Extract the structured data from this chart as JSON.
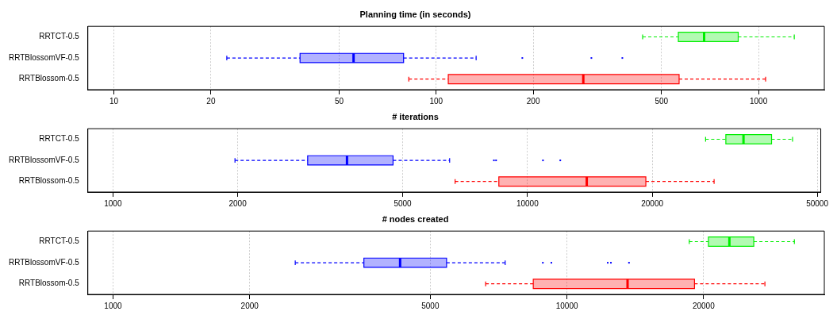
{
  "chart_data": [
    {
      "type": "box",
      "title": "Planning time (in seconds)",
      "categories": [
        "RRTCT-0.5",
        "RRTBlossomVF-0.5",
        "RRTBlossom-0.5"
      ],
      "orientation": "horizontal",
      "colors": [
        "#00ee00",
        "#0000ff",
        "#ff0000"
      ],
      "log": "x",
      "xlim": [
        8.3,
        1600
      ],
      "xticks": [
        10,
        20,
        50,
        100,
        200,
        500,
        1000
      ],
      "grid": "x",
      "legend": false,
      "boxes": [
        {
          "low": 437,
          "q1": 564,
          "median": 678,
          "q3": 865,
          "high": 1291
        },
        {
          "low": 22.4,
          "q1": 37.8,
          "median": 55.4,
          "q3": 79.2,
          "high": 133,
          "outliers": [
            185,
            303,
            378
          ]
        },
        {
          "low": 82.2,
          "q1": 109,
          "median": 286,
          "q3": 567,
          "high": 1052
        }
      ]
    },
    {
      "type": "box",
      "title": "# iterations",
      "categories": [
        "RRTCT-0.5",
        "RRTBlossomVF-0.5",
        "RRTBlossom-0.5"
      ],
      "orientation": "horizontal",
      "colors": [
        "#00ee00",
        "#0000ff",
        "#ff0000"
      ],
      "log": "x",
      "xlim": [
        870,
        51000
      ],
      "xticks": [
        1000,
        2000,
        5000,
        10000,
        20000,
        50000
      ],
      "grid": "x",
      "legend": false,
      "boxes": [
        {
          "low": 26900,
          "q1": 30100,
          "median": 33200,
          "q3": 38800,
          "high": 43600
        },
        {
          "low": 1970,
          "q1": 2950,
          "median": 3670,
          "q3": 4740,
          "high": 6490,
          "outliers": [
            8300,
            8400,
            10900,
            12000
          ]
        },
        {
          "low": 6690,
          "q1": 8530,
          "median": 13900,
          "q3": 19300,
          "high": 28200
        }
      ]
    },
    {
      "type": "box",
      "title": "# nodes created",
      "categories": [
        "RRTCT-0.5",
        "RRTBlossomVF-0.5",
        "RRTBlossom-0.5"
      ],
      "orientation": "horizontal",
      "colors": [
        "#00ee00",
        "#0000ff",
        "#ff0000"
      ],
      "log": "x",
      "xlim": [
        880,
        36900
      ],
      "xticks": [
        1000,
        2000,
        5000,
        10000,
        20000
      ],
      "grid": "x",
      "legend": false,
      "boxes": [
        {
          "low": 18600,
          "q1": 20500,
          "median": 22800,
          "q3": 25800,
          "high": 31700
        },
        {
          "low": 2520,
          "q1": 3570,
          "median": 4290,
          "q3": 5430,
          "high": 7310,
          "outliers": [
            8850,
            9240,
            12300,
            12500,
            13700
          ]
        },
        {
          "low": 6620,
          "q1": 8430,
          "median": 13600,
          "q3": 19100,
          "high": 27300
        }
      ]
    }
  ]
}
